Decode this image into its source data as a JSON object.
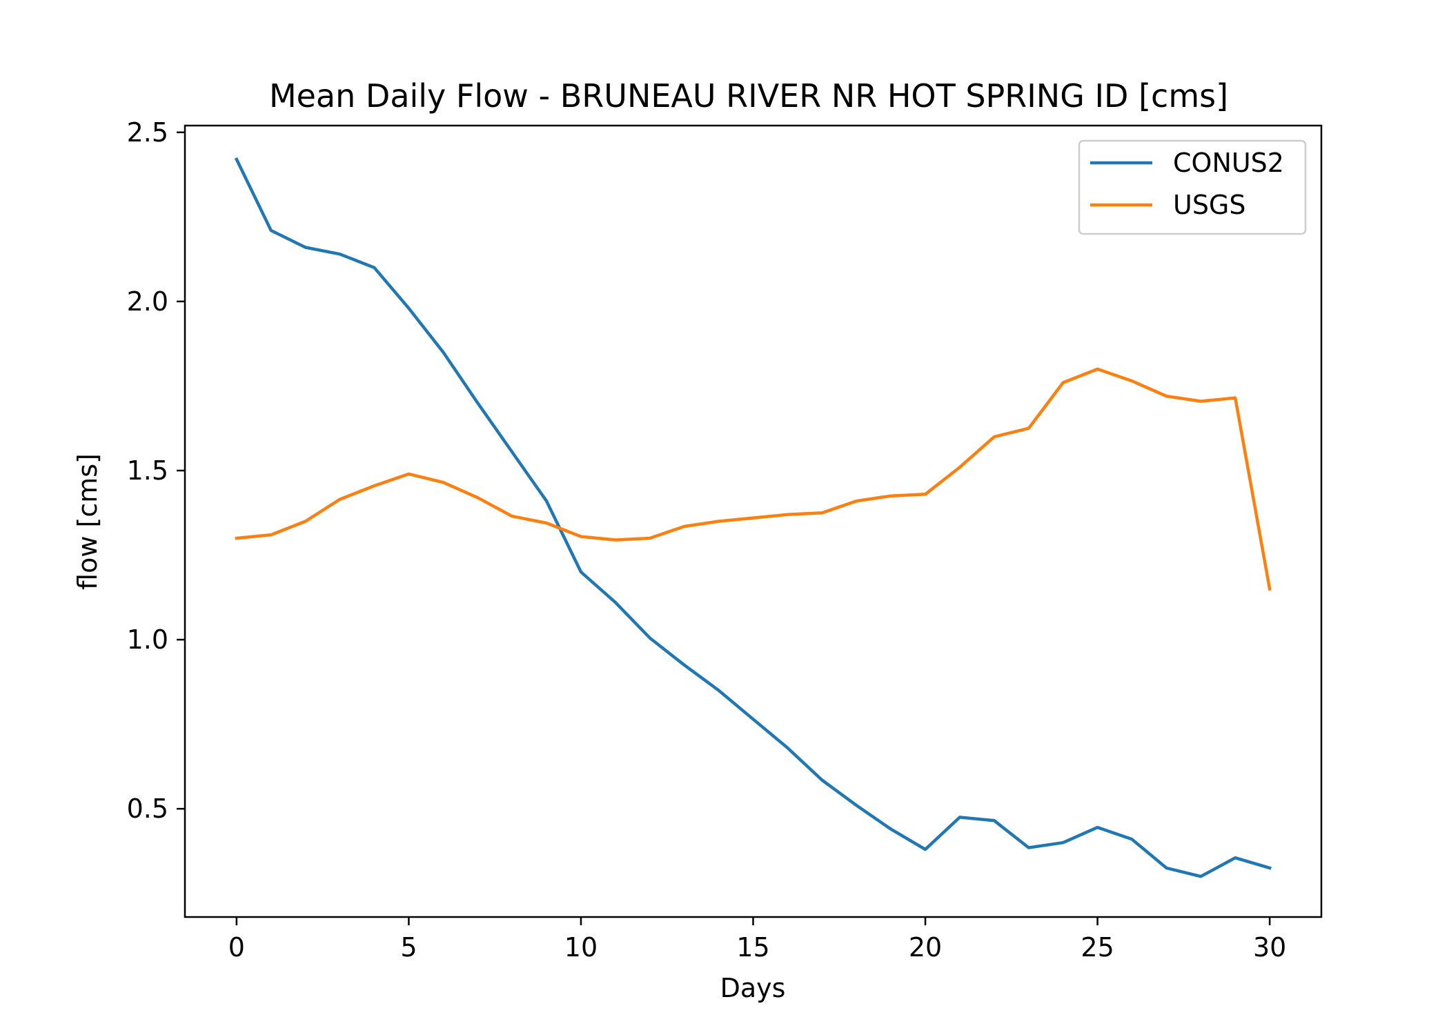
{
  "chart_data": {
    "type": "line",
    "title": "Mean Daily Flow - BRUNEAU RIVER NR HOT SPRING ID [cms]",
    "xlabel": "Days",
    "ylabel": "flow [cms]",
    "xlim": [
      -1.5,
      31.5
    ],
    "ylim": [
      0.18,
      2.52
    ],
    "xticks": [
      0,
      5,
      10,
      15,
      20,
      25,
      30
    ],
    "xtick_labels": [
      "0",
      "5",
      "10",
      "15",
      "20",
      "25",
      "30"
    ],
    "yticks": [
      0.5,
      1.0,
      1.5,
      2.0,
      2.5
    ],
    "ytick_labels": [
      "0.5",
      "1.0",
      "1.5",
      "2.0",
      "2.5"
    ],
    "grid": false,
    "legend_position": "top-right",
    "x": [
      0,
      1,
      2,
      3,
      4,
      5,
      6,
      7,
      8,
      9,
      10,
      11,
      12,
      13,
      14,
      15,
      16,
      17,
      18,
      19,
      20,
      21,
      22,
      23,
      24,
      25,
      26,
      27,
      28,
      29,
      30
    ],
    "series": [
      {
        "name": "CONUS2",
        "color": "#1f77b4",
        "values": [
          2.42,
          2.21,
          2.16,
          2.14,
          2.1,
          1.98,
          1.85,
          1.7,
          1.555,
          1.41,
          1.2,
          1.11,
          1.005,
          0.925,
          0.85,
          0.765,
          0.68,
          0.585,
          0.51,
          0.44,
          0.38,
          0.475,
          0.465,
          0.385,
          0.4,
          0.445,
          0.41,
          0.325,
          0.3,
          0.355,
          0.325
        ]
      },
      {
        "name": "USGS",
        "color": "#ff7f0e",
        "values": [
          1.3,
          1.31,
          1.35,
          1.415,
          1.455,
          1.49,
          1.465,
          1.42,
          1.365,
          1.345,
          1.305,
          1.295,
          1.3,
          1.335,
          1.35,
          1.36,
          1.37,
          1.375,
          1.41,
          1.425,
          1.43,
          1.51,
          1.6,
          1.625,
          1.76,
          1.8,
          1.765,
          1.72,
          1.705,
          1.715,
          1.15
        ]
      }
    ]
  }
}
